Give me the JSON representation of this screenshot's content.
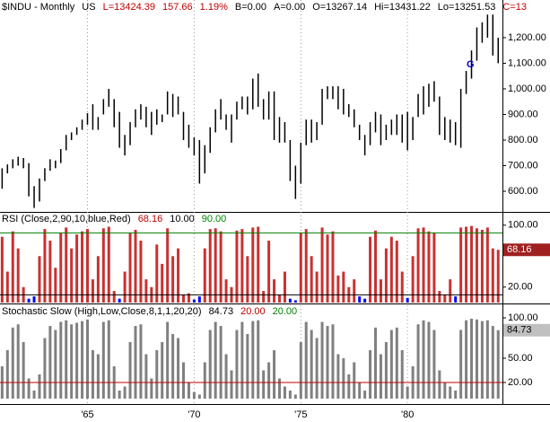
{
  "chart_data": [
    {
      "type": "ohlc",
      "header": [
        {
          "text": "$INDU - Monthly",
          "color": "#000000"
        },
        {
          "text": "US",
          "color": "#000000"
        },
        {
          "text": "L=13424.39",
          "color": "#c00000"
        },
        {
          "text": "157.66",
          "color": "#c00000"
        },
        {
          "text": "1.19%",
          "color": "#c00000"
        },
        {
          "text": "B=0.00",
          "color": "#000000"
        },
        {
          "text": "A=0.00",
          "color": "#000000"
        },
        {
          "text": "O=13267.14",
          "color": "#000000"
        },
        {
          "text": "Hi=13431.22",
          "color": "#000000"
        },
        {
          "text": "Lo=13251.53",
          "color": "#000000"
        },
        {
          "text": "C=13",
          "color": "#c00000"
        }
      ],
      "x": [
        1961.0,
        1961.25,
        1961.5,
        1961.75,
        1962.0,
        1962.25,
        1962.5,
        1962.75,
        1963.0,
        1963.25,
        1963.5,
        1963.75,
        1964.0,
        1964.25,
        1964.5,
        1964.75,
        1965.0,
        1965.25,
        1965.5,
        1965.75,
        1966.0,
        1966.25,
        1966.5,
        1966.75,
        1967.0,
        1967.25,
        1967.5,
        1967.75,
        1968.0,
        1968.25,
        1968.5,
        1968.75,
        1969.0,
        1969.25,
        1969.5,
        1969.75,
        1970.0,
        1970.25,
        1970.5,
        1970.75,
        1971.0,
        1971.25,
        1971.5,
        1971.75,
        1972.0,
        1972.25,
        1972.5,
        1972.75,
        1973.0,
        1973.25,
        1973.5,
        1973.75,
        1974.0,
        1974.25,
        1974.5,
        1974.75,
        1975.0,
        1975.25,
        1975.5,
        1975.75,
        1976.0,
        1976.25,
        1976.5,
        1976.75,
        1977.0,
        1977.25,
        1977.5,
        1977.75,
        1978.0,
        1978.25,
        1978.5,
        1978.75,
        1979.0,
        1979.25,
        1979.5,
        1979.75,
        1980.0,
        1980.25,
        1980.5,
        1980.75,
        1981.0,
        1981.25,
        1981.5,
        1981.75,
        1982.0,
        1982.25,
        1982.5,
        1982.75,
        1983.0,
        1983.25,
        1983.5,
        1983.75,
        1984.0,
        1984.25
      ],
      "high": [
        690,
        705,
        725,
        735,
        730,
        710,
        620,
        650,
        690,
        725,
        720,
        765,
        820,
        830,
        850,
        880,
        905,
        940,
        890,
        960,
        1000,
        960,
        910,
        820,
        870,
        920,
        940,
        930,
        910,
        920,
        900,
        990,
        980,
        970,
        910,
        860,
        810,
        800,
        780,
        850,
        920,
        960,
        900,
        900,
        950,
        970,
        970,
        1040,
        1060,
        960,
        990,
        990,
        890,
        870,
        800,
        700,
        790,
        880,
        880,
        870,
        1000,
        1010,
        1010,
        1010,
        1000,
        940,
        920,
        860,
        820,
        870,
        910,
        900,
        860,
        880,
        900,
        900,
        910,
        890,
        980,
        1010,
        1020,
        1030,
        970,
        890,
        880,
        870,
        1000,
        1070,
        1150,
        1240,
        1260,
        1290,
        1290,
        1200
      ],
      "low": [
        610,
        670,
        690,
        700,
        690,
        580,
        535,
        560,
        640,
        680,
        690,
        710,
        760,
        800,
        820,
        840,
        860,
        840,
        840,
        900,
        930,
        850,
        770,
        740,
        780,
        850,
        880,
        850,
        820,
        860,
        870,
        900,
        890,
        900,
        800,
        770,
        740,
        630,
        670,
        750,
        830,
        880,
        840,
        790,
        880,
        920,
        900,
        920,
        930,
        880,
        880,
        800,
        790,
        790,
        640,
        570,
        630,
        780,
        790,
        800,
        860,
        960,
        960,
        920,
        900,
        890,
        850,
        800,
        740,
        780,
        830,
        780,
        800,
        820,
        820,
        790,
        760,
        800,
        890,
        900,
        930,
        950,
        820,
        800,
        790,
        780,
        770,
        980,
        1040,
        1110,
        1180,
        1200,
        1130,
        1100
      ],
      "color": "#000000",
      "xlim": [
        1960.9,
        1984.45
      ],
      "xticks": [
        {
          "value": 1965,
          "label": "'65"
        },
        {
          "value": 1970,
          "label": "'70"
        },
        {
          "value": 1975,
          "label": "'75"
        },
        {
          "value": 1980,
          "label": "'80"
        }
      ],
      "ylim": [
        523,
        1347
      ],
      "yticks": [
        {
          "value": 600,
          "label": "600.00"
        },
        {
          "value": 700,
          "label": "700.00"
        },
        {
          "value": 800,
          "label": "800.00"
        },
        {
          "value": 900,
          "label": "900.00"
        },
        {
          "value": 1000,
          "label": "1,000.00"
        },
        {
          "value": 1100,
          "label": "1,100.00"
        },
        {
          "value": 1200,
          "label": "1,200.00"
        }
      ],
      "annotations": [
        {
          "text": "G",
          "x": 1982.95,
          "y": 1095,
          "color": "#0000c0"
        }
      ]
    },
    {
      "type": "bar",
      "title": "RSI (Close,2,90,10,blue,Red)",
      "values": [
        85,
        40,
        92,
        70,
        20,
        5,
        8,
        60,
        95,
        80,
        45,
        90,
        97,
        70,
        88,
        92,
        95,
        30,
        60,
        96,
        98,
        15,
        5,
        40,
        90,
        94,
        80,
        30,
        20,
        75,
        50,
        96,
        60,
        70,
        10,
        12,
        4,
        8,
        70,
        95,
        96,
        92,
        30,
        20,
        93,
        95,
        60,
        97,
        98,
        15,
        80,
        30,
        10,
        40,
        5,
        3,
        90,
        95,
        60,
        40,
        97,
        88,
        92,
        35,
        40,
        20,
        30,
        8,
        5,
        85,
        93,
        30,
        70,
        85,
        80,
        40,
        6,
        60,
        96,
        97,
        92,
        90,
        15,
        10,
        30,
        8,
        97,
        98,
        99,
        96,
        94,
        97,
        70,
        68.16
      ],
      "color": "#c83232",
      "low_color": "#0000ff",
      "current": 68.16,
      "current_color": "#c00000",
      "levels": [
        {
          "value": 10,
          "label": "10.00",
          "color": "#000000"
        },
        {
          "value": 90,
          "label": "90.00",
          "color": "#008000"
        }
      ],
      "ylim": [
        0,
        116
      ],
      "yticks": [
        {
          "value": 20,
          "label": "20.00"
        },
        {
          "value": 100,
          "label": "100.00"
        }
      ]
    },
    {
      "type": "bar",
      "title": "Stochastic Slow (High,Low,Close,8,1,1,20,20)",
      "values": [
        40,
        60,
        88,
        92,
        70,
        25,
        10,
        30,
        75,
        90,
        85,
        95,
        97,
        92,
        94,
        96,
        98,
        60,
        55,
        95,
        97,
        40,
        10,
        15,
        70,
        90,
        92,
        55,
        25,
        60,
        70,
        95,
        80,
        75,
        45,
        20,
        8,
        5,
        45,
        85,
        95,
        90,
        55,
        35,
        85,
        95,
        80,
        96,
        97,
        35,
        45,
        60,
        25,
        15,
        10,
        5,
        70,
        95,
        85,
        75,
        95,
        90,
        92,
        55,
        50,
        30,
        45,
        20,
        10,
        60,
        88,
        55,
        70,
        85,
        88,
        60,
        15,
        40,
        92,
        97,
        95,
        85,
        35,
        20,
        15,
        10,
        85,
        97,
        99,
        98,
        96,
        97,
        90,
        84.73
      ],
      "color": "#808080",
      "current": 84.73,
      "current_color": "#000000",
      "levels": [
        {
          "value": 20,
          "label": "20.00",
          "color": "#c00000"
        },
        {
          "value": 20,
          "label": "20.00",
          "color": "#008000"
        }
      ],
      "ylim": [
        -6.7,
        116.7
      ],
      "yticks": [
        {
          "value": 20,
          "label": "20.00"
        },
        {
          "value": 50,
          "label": "50.00"
        },
        {
          "value": 100,
          "label": "100.00"
        }
      ]
    }
  ]
}
